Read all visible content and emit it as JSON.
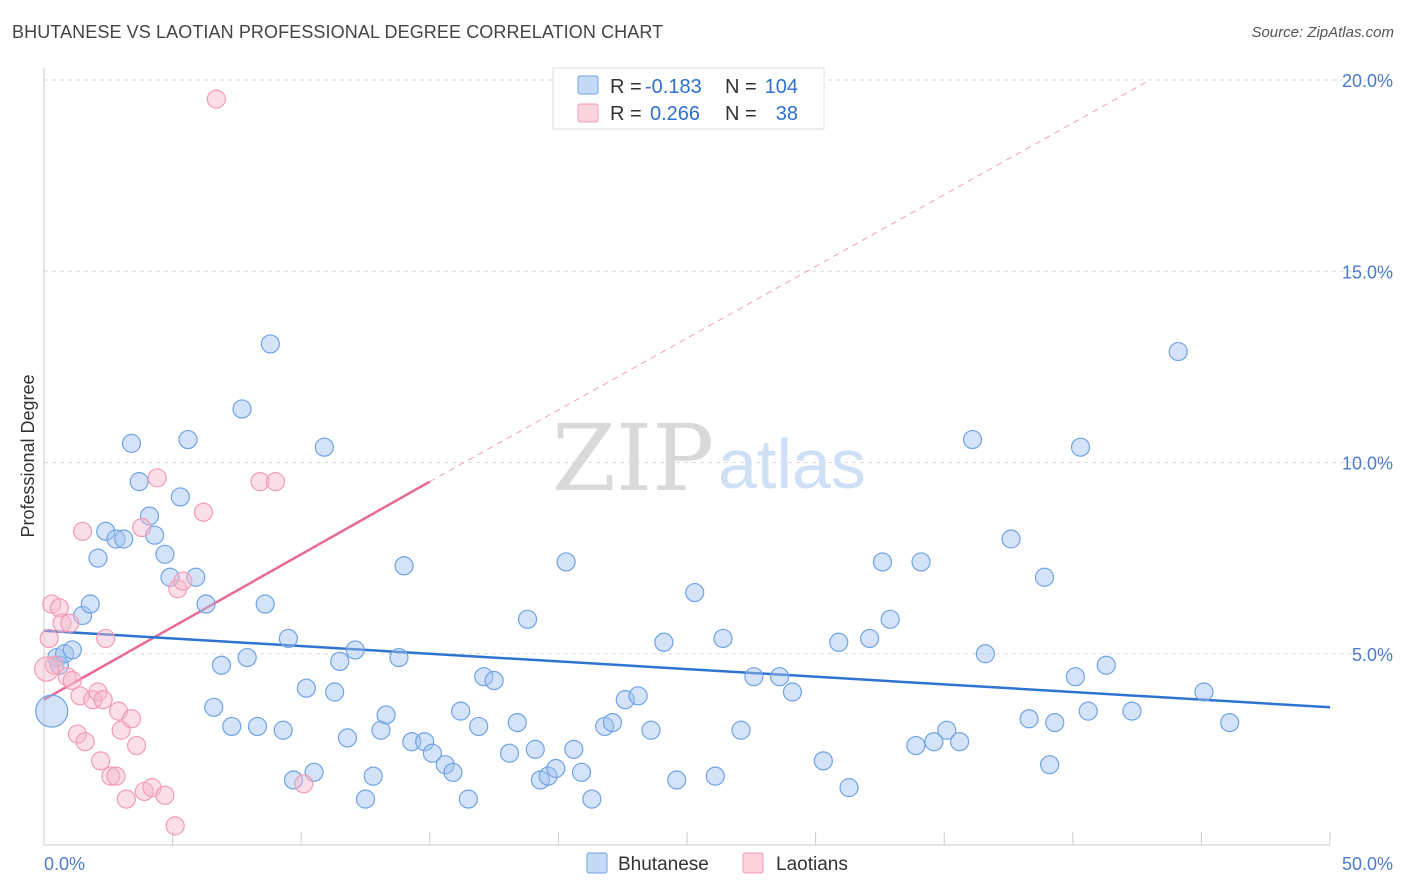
{
  "title": "BHUTANESE VS LAOTIAN PROFESSIONAL DEGREE CORRELATION CHART",
  "source": "Source: ZipAtlas.com",
  "watermark": {
    "zip": "ZIP",
    "atlas": "atlas"
  },
  "legend": {
    "rows": [
      {
        "r_label": "R =",
        "r_value": "-0.183",
        "n_label": "N =",
        "n_value": "104",
        "color": "#9fc2ee"
      },
      {
        "r_label": "R =",
        "r_value": "0.266",
        "n_label": "N =",
        "n_value": "38",
        "color": "#f5b8cb"
      }
    ]
  },
  "bottom_legend": [
    {
      "label": "Bhutanese",
      "color": "#9fc2ee"
    },
    {
      "label": "Laotians",
      "color": "#f5b8cb"
    }
  ],
  "chart_data": {
    "type": "scatter",
    "title": "BHUTANESE VS LAOTIAN PROFESSIONAL DEGREE CORRELATION CHART",
    "xlabel": "",
    "ylabel": "Professional Degree",
    "xlim": [
      0,
      50
    ],
    "ylim": [
      0,
      20
    ],
    "x_tick_labels": [
      "0.0%",
      "50.0%"
    ],
    "y_ticks": [
      5,
      10,
      15,
      20
    ],
    "y_tick_labels": [
      "5.0%",
      "10.0%",
      "15.0%",
      "20.0%"
    ],
    "grid": true,
    "series": [
      {
        "name": "Bhutanese",
        "color": "#6fa3e6",
        "trend": {
          "x0": 0,
          "y0": 5.6,
          "x1": 50,
          "y1": 3.6
        },
        "points": [
          [
            0.3,
            3.5
          ],
          [
            0.5,
            4.9
          ],
          [
            0.6,
            4.7
          ],
          [
            0.8,
            5.0
          ],
          [
            1.1,
            5.1
          ],
          [
            1.5,
            6.0
          ],
          [
            1.8,
            6.3
          ],
          [
            2.1,
            7.5
          ],
          [
            2.4,
            8.2
          ],
          [
            2.8,
            8.0
          ],
          [
            3.1,
            8.0
          ],
          [
            3.4,
            10.5
          ],
          [
            3.7,
            9.5
          ],
          [
            4.1,
            8.6
          ],
          [
            4.3,
            8.1
          ],
          [
            4.7,
            7.6
          ],
          [
            4.9,
            7.0
          ],
          [
            5.3,
            9.1
          ],
          [
            5.6,
            10.6
          ],
          [
            5.9,
            7.0
          ],
          [
            6.3,
            6.3
          ],
          [
            6.6,
            3.6
          ],
          [
            6.9,
            4.7
          ],
          [
            7.3,
            3.1
          ],
          [
            7.7,
            11.4
          ],
          [
            7.9,
            4.9
          ],
          [
            8.3,
            3.1
          ],
          [
            8.6,
            6.3
          ],
          [
            8.8,
            13.1
          ],
          [
            9.3,
            3.0
          ],
          [
            9.5,
            5.4
          ],
          [
            9.7,
            1.7
          ],
          [
            10.2,
            4.1
          ],
          [
            10.5,
            1.9
          ],
          [
            10.9,
            10.4
          ],
          [
            11.3,
            4.0
          ],
          [
            11.5,
            4.8
          ],
          [
            11.8,
            2.8
          ],
          [
            12.1,
            5.1
          ],
          [
            12.5,
            1.2
          ],
          [
            12.8,
            1.8
          ],
          [
            13.1,
            3.0
          ],
          [
            13.3,
            3.4
          ],
          [
            13.8,
            4.9
          ],
          [
            14.0,
            7.3
          ],
          [
            14.3,
            2.7
          ],
          [
            14.8,
            2.7
          ],
          [
            15.1,
            2.4
          ],
          [
            15.6,
            2.1
          ],
          [
            15.9,
            1.9
          ],
          [
            16.2,
            3.5
          ],
          [
            16.5,
            1.2
          ],
          [
            16.9,
            3.1
          ],
          [
            17.1,
            4.4
          ],
          [
            17.5,
            4.3
          ],
          [
            18.1,
            2.4
          ],
          [
            18.4,
            3.2
          ],
          [
            18.8,
            5.9
          ],
          [
            19.1,
            2.5
          ],
          [
            19.3,
            1.7
          ],
          [
            19.6,
            1.8
          ],
          [
            19.9,
            2.0
          ],
          [
            20.3,
            7.4
          ],
          [
            20.6,
            2.5
          ],
          [
            20.9,
            1.9
          ],
          [
            21.3,
            1.2
          ],
          [
            21.8,
            3.1
          ],
          [
            22.1,
            3.2
          ],
          [
            22.6,
            3.8
          ],
          [
            23.1,
            3.9
          ],
          [
            23.6,
            3.0
          ],
          [
            24.1,
            5.3
          ],
          [
            24.6,
            1.7
          ],
          [
            25.3,
            6.6
          ],
          [
            26.1,
            1.8
          ],
          [
            26.4,
            5.4
          ],
          [
            27.1,
            3.0
          ],
          [
            27.6,
            4.4
          ],
          [
            28.6,
            4.4
          ],
          [
            29.1,
            4.0
          ],
          [
            30.3,
            2.2
          ],
          [
            30.9,
            5.3
          ],
          [
            31.3,
            1.5
          ],
          [
            32.1,
            5.4
          ],
          [
            32.6,
            7.4
          ],
          [
            32.9,
            5.9
          ],
          [
            33.9,
            2.6
          ],
          [
            34.1,
            7.4
          ],
          [
            34.6,
            2.7
          ],
          [
            35.1,
            3.0
          ],
          [
            35.6,
            2.7
          ],
          [
            36.1,
            10.6
          ],
          [
            36.6,
            5.0
          ],
          [
            37.6,
            8.0
          ],
          [
            38.3,
            3.3
          ],
          [
            38.9,
            7.0
          ],
          [
            39.1,
            2.1
          ],
          [
            39.3,
            3.2
          ],
          [
            40.1,
            4.4
          ],
          [
            40.3,
            10.4
          ],
          [
            40.6,
            3.5
          ],
          [
            41.3,
            4.7
          ],
          [
            42.3,
            3.5
          ],
          [
            44.1,
            12.9
          ],
          [
            45.1,
            4.0
          ],
          [
            46.1,
            3.2
          ]
        ]
      },
      {
        "name": "Laotians",
        "color": "#f29bb5",
        "trend": {
          "x0": 0,
          "y0": 3.8,
          "x1": 15,
          "y1": 9.5
        },
        "trend_extended": {
          "x0": 15,
          "y0": 9.5,
          "x1": 43,
          "y1": 20.0
        },
        "points": [
          [
            0.2,
            5.4
          ],
          [
            0.3,
            6.3
          ],
          [
            0.4,
            4.7
          ],
          [
            0.6,
            6.2
          ],
          [
            0.7,
            5.8
          ],
          [
            0.9,
            4.4
          ],
          [
            1.0,
            5.8
          ],
          [
            1.1,
            4.3
          ],
          [
            1.3,
            2.9
          ],
          [
            1.4,
            3.9
          ],
          [
            1.6,
            2.7
          ],
          [
            1.9,
            3.8
          ],
          [
            2.1,
            4.0
          ],
          [
            2.2,
            2.2
          ],
          [
            2.3,
            3.8
          ],
          [
            2.4,
            5.4
          ],
          [
            2.6,
            1.8
          ],
          [
            2.8,
            1.8
          ],
          [
            2.9,
            3.5
          ],
          [
            3.0,
            3.0
          ],
          [
            3.2,
            1.2
          ],
          [
            3.4,
            3.3
          ],
          [
            3.6,
            2.6
          ],
          [
            3.8,
            8.3
          ],
          [
            3.9,
            1.4
          ],
          [
            4.2,
            1.5
          ],
          [
            4.4,
            9.6
          ],
          [
            4.7,
            1.3
          ],
          [
            5.1,
            0.5
          ],
          [
            5.2,
            6.7
          ],
          [
            5.4,
            6.9
          ],
          [
            6.2,
            8.7
          ],
          [
            6.7,
            19.5
          ],
          [
            8.4,
            9.5
          ],
          [
            9.0,
            9.5
          ],
          [
            10.1,
            1.6
          ],
          [
            1.5,
            8.2
          ],
          [
            0.1,
            4.6
          ]
        ]
      }
    ]
  }
}
